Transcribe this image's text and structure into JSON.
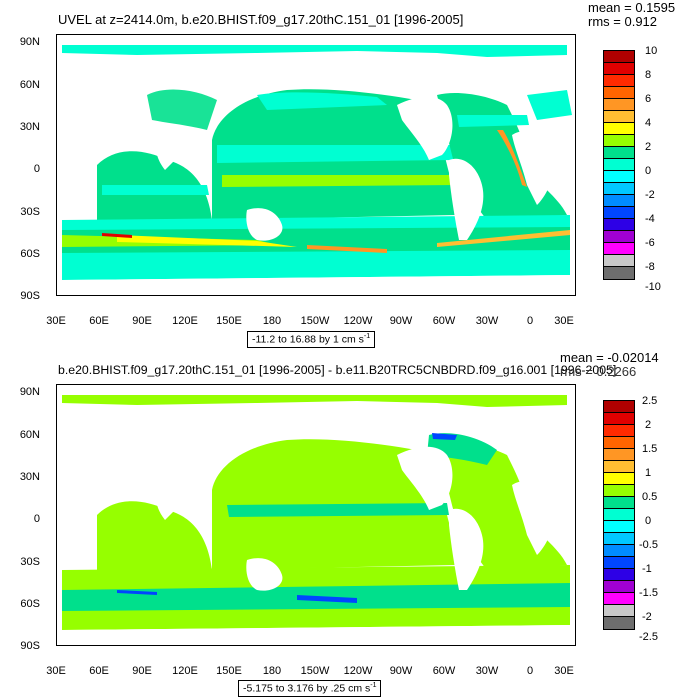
{
  "panels": [
    {
      "title": "UVEL at z=2414.0m, b.e20.BHIST.f09_g17.20thC.151_01 [1996-2005]",
      "mean": "mean = 0.1595",
      "rms": "rms = 0.912",
      "range_text": "-11.2 to 16.88 by 1 cm s",
      "range_sup": "-1",
      "colorbar_labels": [
        "10",
        "8",
        "6",
        "4",
        "2",
        "0",
        "-2",
        "-4",
        "-6",
        "-8",
        "-10"
      ],
      "colorbar_colors": [
        "#b00000",
        "#e00000",
        "#ff2a00",
        "#ff6400",
        "#ff9624",
        "#ffbe32",
        "#ffff00",
        "#96ff00",
        "#00e08c",
        "#00ffd2",
        "#00ffff",
        "#00c8ff",
        "#008cff",
        "#0046ff",
        "#2d00e6",
        "#a000d2",
        "#ff00ff",
        "#c8c8c8",
        "#6e6e6e"
      ]
    },
    {
      "title": "b.e20.BHIST.f09_g17.20thC.151_01 [1996-2005] - b.e11.B20TRC5CNBDRD.f09_g16.001 [1996-2005]",
      "mean": "mean = -0.02014",
      "rms": "rms = 0.2266",
      "range_text": "-5.175 to 3.176 by .25 cm s",
      "range_sup": "-1",
      "colorbar_labels": [
        "2.5",
        "2",
        "1.5",
        "1",
        "0.5",
        "0",
        "-0.5",
        "-1",
        "-1.5",
        "-2",
        "-2.5"
      ],
      "colorbar_colors": [
        "#b00000",
        "#e00000",
        "#ff2a00",
        "#ff6400",
        "#ff9624",
        "#ffbe32",
        "#ffff00",
        "#96ff00",
        "#00e08c",
        "#00ffd2",
        "#00ffff",
        "#00c8ff",
        "#008cff",
        "#0046ff",
        "#2d00e6",
        "#a000d2",
        "#ff00ff",
        "#c8c8c8",
        "#6e6e6e"
      ]
    }
  ],
  "lat_labels": [
    "90N",
    "60N",
    "30N",
    "0",
    "30S",
    "60S",
    "90S"
  ],
  "lon_labels": [
    "30E",
    "60E",
    "90E",
    "120E",
    "150E",
    "180",
    "150W",
    "120W",
    "90W",
    "60W",
    "30W",
    "0",
    "30E"
  ]
}
